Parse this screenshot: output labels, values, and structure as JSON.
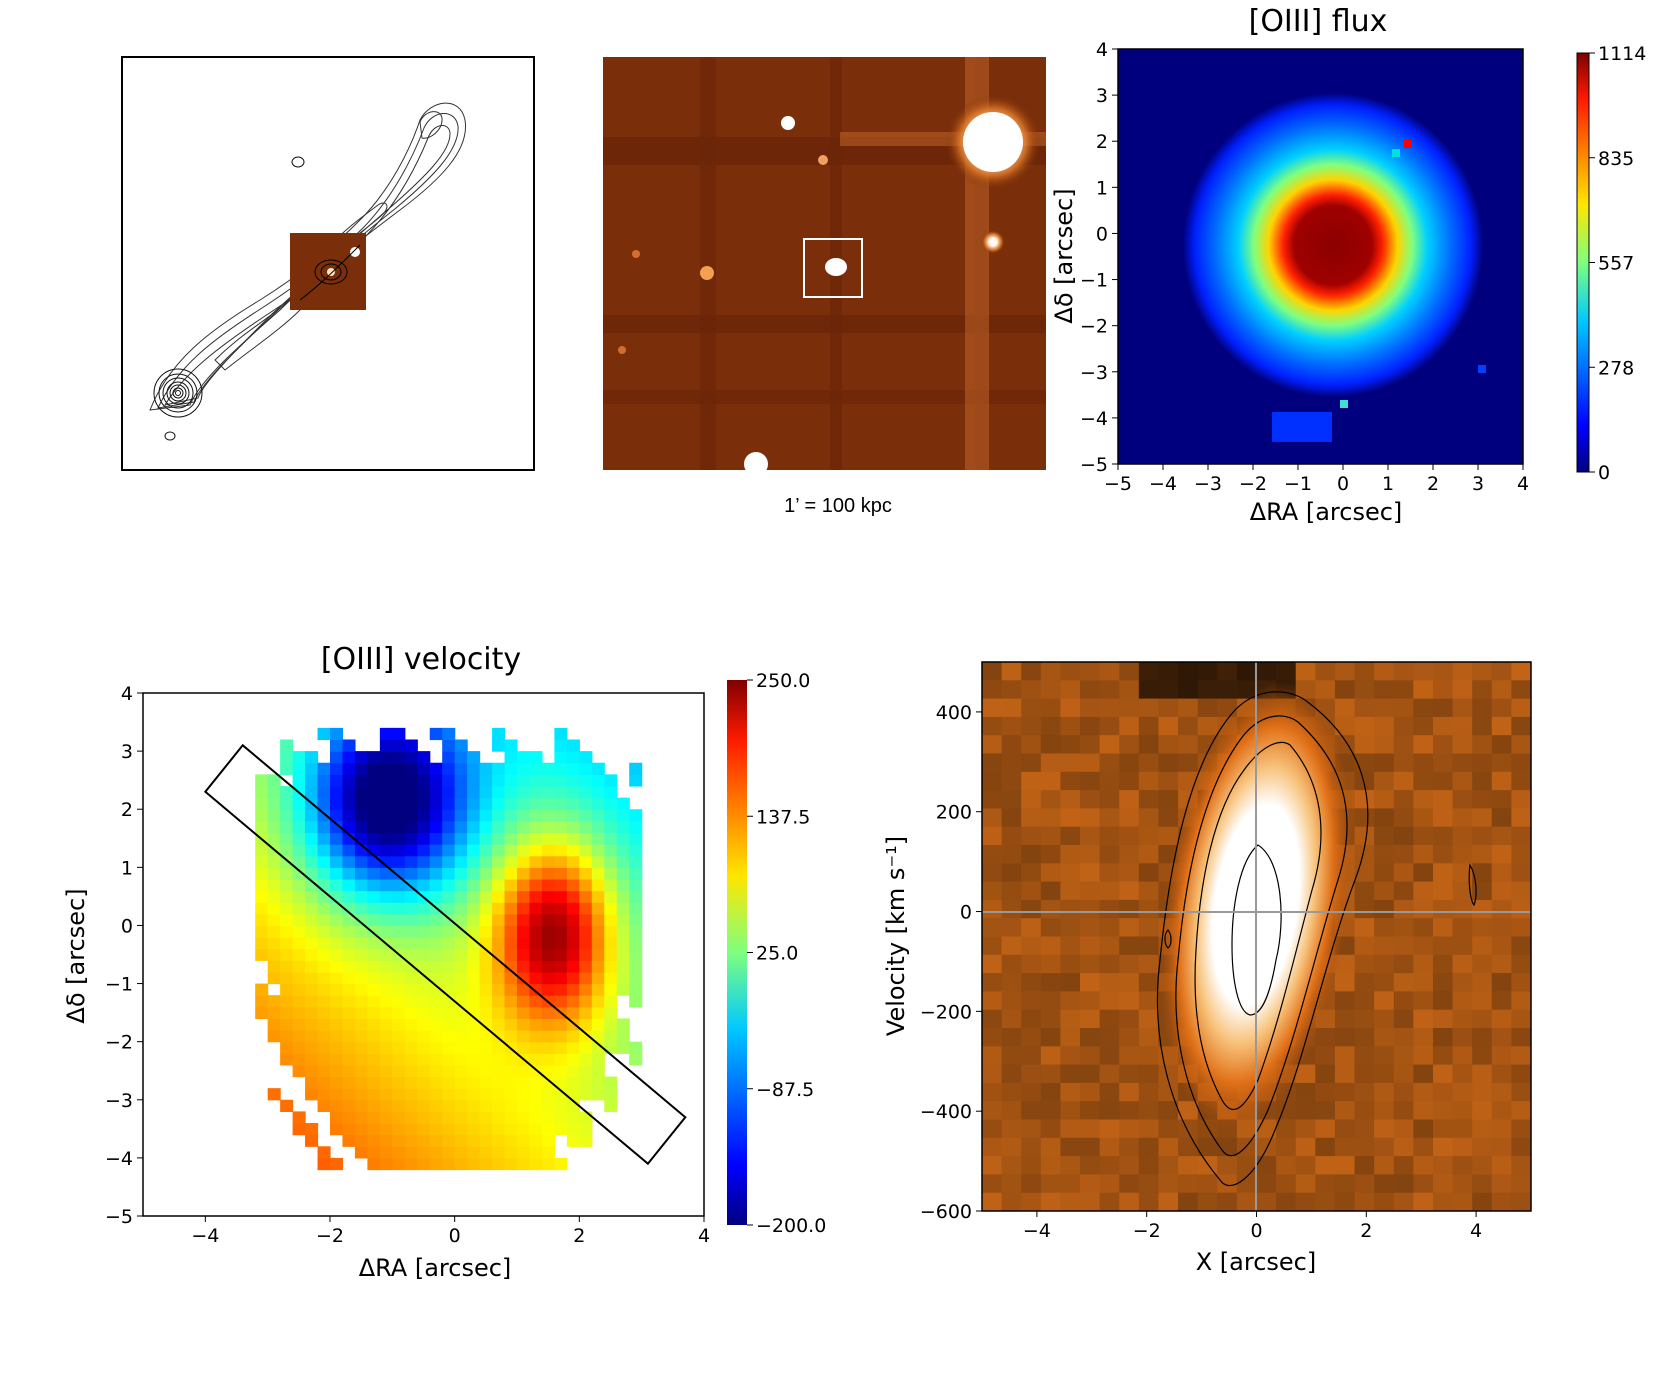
{
  "chart_data": [
    {
      "type": "image",
      "panel": "radio-contour-map",
      "description_marks": [
        "contours",
        "inset-cutout"
      ]
    },
    {
      "type": "image",
      "panel": "optical-field-image",
      "caption": "1’ = 100 kpc"
    },
    {
      "type": "heatmap",
      "panel": "oiii-flux-map",
      "title": "[OIII] flux",
      "xlabel": "ΔRA [arcsec]",
      "ylabel": "Δδ [arcsec]",
      "xlim": [
        -5,
        4
      ],
      "ylim": [
        -5,
        4
      ],
      "xticks": [
        "−5",
        "−4",
        "−3",
        "−2",
        "−1",
        "0",
        "1",
        "2",
        "3",
        "4"
      ],
      "yticks": [
        "4",
        "3",
        "2",
        "1",
        "0",
        "−1",
        "−2",
        "−3",
        "−4",
        "−5"
      ],
      "colorbar": {
        "min": 0,
        "max": 1114,
        "ticks": [
          "1114",
          "835",
          "557",
          "278",
          "0"
        ]
      },
      "peak_position": [
        0,
        0
      ],
      "peak_value": 1114
    },
    {
      "type": "heatmap",
      "panel": "oiii-velocity-map",
      "title": "[OIII] velocity",
      "xlabel": "ΔRA [arcsec]",
      "ylabel": "Δδ [arcsec]",
      "xlim": [
        -5,
        4
      ],
      "ylim": [
        -5,
        4
      ],
      "xticks": [
        "−4",
        "−2",
        "0",
        "2",
        "4"
      ],
      "yticks": [
        "4",
        "3",
        "2",
        "1",
        "0",
        "−1",
        "−2",
        "−3",
        "−4",
        "−5"
      ],
      "colorbar": {
        "min": -200.0,
        "max": 250.0,
        "ticks": [
          "250.0",
          "137.5",
          "25.0",
          "−87.5",
          "−200.0"
        ]
      },
      "redshifted_peak_position": [
        1.5,
        -0.2
      ],
      "blueshifted_peak_position": [
        -1.2,
        2.0
      ],
      "slit_corners": [
        [
          -3.4,
          3.1
        ],
        [
          -4.0,
          2.3
        ],
        [
          3.1,
          -4.1
        ],
        [
          3.7,
          -3.3
        ]
      ]
    },
    {
      "type": "heatmap",
      "panel": "position-velocity-diagram",
      "xlabel": "X [arcsec]",
      "ylabel": "Velocity [km s⁻¹]",
      "xlim": [
        -5,
        5
      ],
      "ylim": [
        -600,
        500
      ],
      "xticks": [
        "−4",
        "−2",
        "0",
        "2",
        "4"
      ],
      "yticks": [
        "400",
        "200",
        "0",
        "−200",
        "−400",
        "−600"
      ],
      "zero_lines": {
        "x": 0,
        "y": 0
      }
    }
  ]
}
